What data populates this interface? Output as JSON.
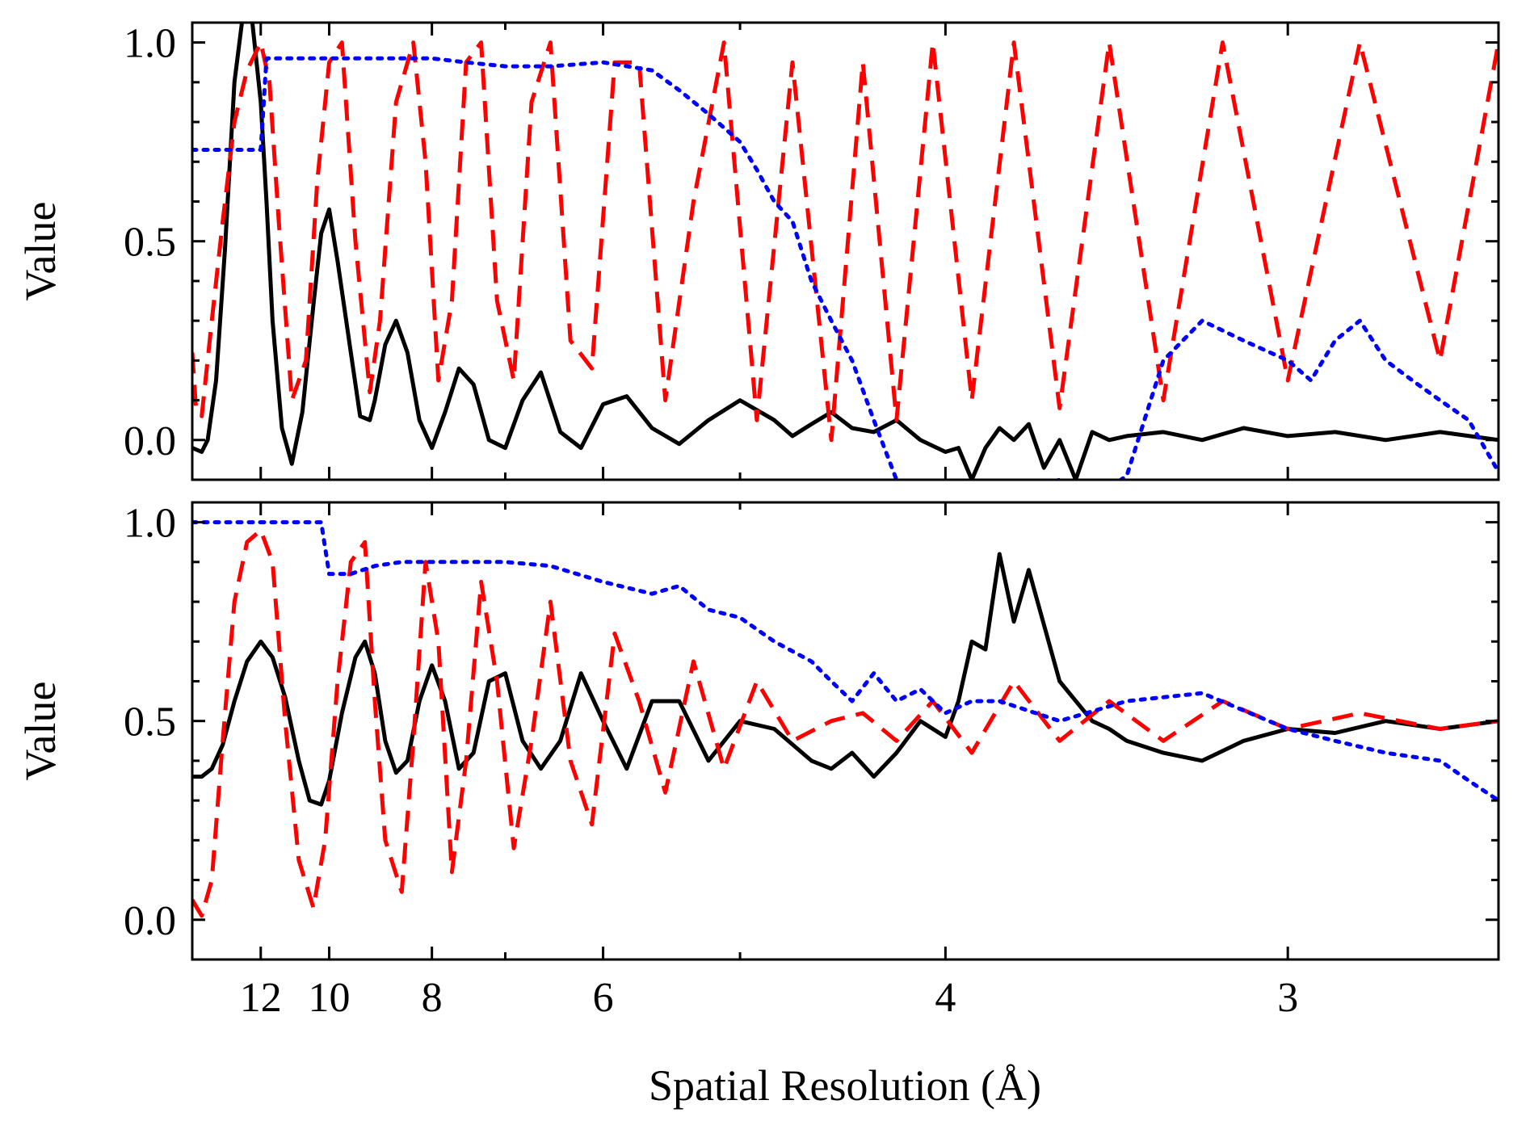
{
  "chart_data": [
    {
      "type": "line",
      "xlabel": "",
      "ylabel": "Value",
      "x_scale": "reciprocal",
      "xlim": [
        15.0,
        2.6
      ],
      "ylim": [
        -0.1,
        1.05
      ],
      "x_major_ticks": [
        12,
        10,
        8,
        6,
        4,
        3
      ],
      "x_tick_labels": [],
      "x_minor_ticks": [
        7,
        5
      ],
      "y_ticks": [
        0.0,
        0.5,
        1.0
      ],
      "y_tick_labels": [
        "0.0",
        "0.5",
        "1.0"
      ],
      "y_minor_ticks": [
        0.1,
        0.2,
        0.3,
        0.4,
        0.6,
        0.7,
        0.8,
        0.9
      ],
      "series": [
        {
          "style": "solid",
          "color": "#000000",
          "x": [
            15.0,
            14.5,
            14.2,
            13.8,
            13.4,
            13.0,
            12.6,
            12.3,
            12.0,
            11.8,
            11.6,
            11.3,
            11.0,
            10.7,
            10.4,
            10.2,
            10.0,
            9.8,
            9.5,
            9.3,
            9.1,
            9.0,
            8.8,
            8.6,
            8.4,
            8.2,
            8.0,
            7.8,
            7.6,
            7.4,
            7.2,
            7.0,
            6.8,
            6.6,
            6.4,
            6.2,
            6.0,
            5.8,
            5.6,
            5.4,
            5.2,
            5.0,
            4.8,
            4.7,
            4.6,
            4.5,
            4.4,
            4.3,
            4.2,
            4.1,
            4.0,
            3.95,
            3.9,
            3.85,
            3.8,
            3.75,
            3.7,
            3.65,
            3.6,
            3.55,
            3.5,
            3.45,
            3.4,
            3.3,
            3.2,
            3.1,
            3.0,
            2.9,
            2.8,
            2.7,
            2.6
          ],
          "y": [
            -0.02,
            -0.03,
            0.0,
            0.15,
            0.48,
            0.9,
            1.1,
            1.05,
            0.85,
            0.6,
            0.3,
            0.03,
            -0.06,
            0.07,
            0.34,
            0.52,
            0.58,
            0.45,
            0.22,
            0.06,
            0.05,
            0.1,
            0.24,
            0.3,
            0.22,
            0.05,
            -0.02,
            0.07,
            0.18,
            0.14,
            0.0,
            -0.02,
            0.1,
            0.17,
            0.02,
            -0.02,
            0.09,
            0.11,
            0.03,
            -0.01,
            0.05,
            0.1,
            0.05,
            0.01,
            0.04,
            0.07,
            0.03,
            0.02,
            0.05,
            0.0,
            -0.03,
            -0.02,
            -0.1,
            -0.02,
            0.03,
            0.0,
            0.04,
            -0.07,
            0.0,
            -0.1,
            0.02,
            0.0,
            0.01,
            0.02,
            0.0,
            0.03,
            0.01,
            0.02,
            0.0,
            0.02,
            0.0
          ]
        },
        {
          "style": "dashed",
          "color": "#ff0000",
          "x": [
            15.0,
            14.8,
            14.5,
            14.0,
            13.5,
            13.0,
            12.5,
            12.0,
            11.7,
            11.4,
            11.0,
            10.6,
            10.3,
            10.0,
            9.7,
            9.4,
            9.1,
            8.9,
            8.6,
            8.3,
            8.1,
            7.9,
            7.7,
            7.5,
            7.3,
            7.1,
            6.9,
            6.7,
            6.5,
            6.3,
            6.1,
            5.9,
            5.7,
            5.5,
            5.3,
            5.1,
            4.9,
            4.7,
            4.5,
            4.35,
            4.2,
            4.05,
            3.9,
            3.75,
            3.6,
            3.45,
            3.3,
            3.15,
            3.0,
            2.85,
            2.7,
            2.6
          ],
          "y": [
            0.22,
            0.08,
            0.06,
            0.3,
            0.55,
            0.8,
            0.93,
            1.0,
            0.9,
            0.55,
            0.1,
            0.2,
            0.65,
            0.95,
            1.0,
            0.5,
            0.12,
            0.3,
            0.85,
            1.0,
            0.7,
            0.15,
            0.35,
            0.95,
            1.0,
            0.35,
            0.15,
            0.85,
            1.0,
            0.25,
            0.18,
            0.95,
            0.95,
            0.1,
            0.6,
            1.0,
            0.05,
            0.95,
            0.0,
            0.95,
            0.05,
            1.0,
            0.1,
            1.0,
            0.08,
            1.0,
            0.1,
            1.0,
            0.15,
            1.0,
            0.2,
            1.0
          ]
        },
        {
          "style": "dotted",
          "color": "#0000ff",
          "x": [
            15.0,
            14.0,
            13.0,
            12.0,
            11.8,
            11.5,
            11.0,
            10.0,
            9.0,
            8.0,
            7.5,
            7.0,
            6.5,
            6.0,
            5.6,
            5.4,
            5.2,
            5.0,
            4.9,
            4.8,
            4.7,
            4.6,
            4.5,
            4.4,
            4.3,
            4.2,
            4.1,
            4.0,
            3.9,
            3.8,
            3.6,
            3.45,
            3.4,
            3.3,
            3.2,
            3.1,
            3.0,
            2.95,
            2.9,
            2.85,
            2.8,
            2.75,
            2.7,
            2.65,
            2.6
          ],
          "y": [
            0.73,
            0.73,
            0.73,
            0.73,
            0.96,
            0.96,
            0.96,
            0.96,
            0.96,
            0.96,
            0.95,
            0.94,
            0.94,
            0.95,
            0.93,
            0.88,
            0.82,
            0.75,
            0.68,
            0.6,
            0.55,
            0.4,
            0.3,
            0.2,
            0.05,
            -0.1,
            -0.12,
            -0.18,
            -0.15,
            -0.15,
            -0.1,
            -0.12,
            -0.09,
            0.2,
            0.3,
            0.25,
            0.2,
            0.15,
            0.25,
            0.3,
            0.2,
            0.15,
            0.1,
            0.05,
            -0.08
          ]
        }
      ]
    },
    {
      "type": "line",
      "xlabel": "Spatial Resolution (Å)",
      "ylabel": "Value",
      "x_scale": "reciprocal",
      "xlim": [
        15.0,
        2.6
      ],
      "ylim": [
        -0.1,
        1.05
      ],
      "x_major_ticks": [
        12,
        10,
        8,
        6,
        4,
        3
      ],
      "x_tick_labels": [
        "12",
        "10",
        "8",
        "6",
        "4",
        "3"
      ],
      "x_minor_ticks": [
        7,
        5
      ],
      "y_ticks": [
        0.0,
        0.5,
        1.0
      ],
      "y_tick_labels": [
        "0.0",
        "0.5",
        "1.0"
      ],
      "y_minor_ticks": [
        0.1,
        0.2,
        0.3,
        0.4,
        0.6,
        0.7,
        0.8,
        0.9
      ],
      "series": [
        {
          "style": "solid",
          "color": "#000000",
          "x": [
            15.0,
            14.5,
            14.0,
            13.5,
            13.0,
            12.5,
            12.0,
            11.6,
            11.2,
            10.8,
            10.5,
            10.2,
            10.0,
            9.7,
            9.4,
            9.2,
            9.0,
            8.8,
            8.6,
            8.4,
            8.2,
            8.0,
            7.8,
            7.6,
            7.4,
            7.2,
            7.0,
            6.8,
            6.6,
            6.4,
            6.2,
            6.0,
            5.8,
            5.6,
            5.4,
            5.2,
            5.0,
            4.8,
            4.6,
            4.5,
            4.4,
            4.3,
            4.2,
            4.1,
            4.0,
            3.95,
            3.9,
            3.85,
            3.8,
            3.75,
            3.7,
            3.6,
            3.5,
            3.45,
            3.4,
            3.3,
            3.2,
            3.1,
            3.0,
            2.9,
            2.8,
            2.7,
            2.6
          ],
          "y": [
            0.36,
            0.36,
            0.38,
            0.44,
            0.55,
            0.65,
            0.7,
            0.66,
            0.56,
            0.4,
            0.3,
            0.29,
            0.35,
            0.52,
            0.66,
            0.7,
            0.62,
            0.45,
            0.37,
            0.4,
            0.55,
            0.64,
            0.55,
            0.38,
            0.42,
            0.6,
            0.62,
            0.45,
            0.38,
            0.45,
            0.62,
            0.5,
            0.38,
            0.55,
            0.55,
            0.4,
            0.5,
            0.48,
            0.4,
            0.38,
            0.42,
            0.36,
            0.42,
            0.5,
            0.46,
            0.55,
            0.7,
            0.68,
            0.92,
            0.75,
            0.88,
            0.6,
            0.5,
            0.48,
            0.45,
            0.42,
            0.4,
            0.45,
            0.48,
            0.47,
            0.5,
            0.48,
            0.5
          ]
        },
        {
          "style": "dashed",
          "color": "#ff0000",
          "x": [
            15.0,
            14.5,
            14.0,
            13.5,
            13.0,
            12.5,
            12.0,
            11.6,
            11.2,
            10.8,
            10.4,
            10.1,
            9.8,
            9.5,
            9.2,
            9.0,
            8.8,
            8.5,
            8.3,
            8.1,
            7.9,
            7.7,
            7.5,
            7.3,
            7.1,
            6.9,
            6.7,
            6.5,
            6.3,
            6.1,
            5.9,
            5.7,
            5.5,
            5.3,
            5.1,
            4.9,
            4.7,
            4.5,
            4.35,
            4.2,
            4.05,
            3.9,
            3.75,
            3.6,
            3.45,
            3.3,
            3.15,
            3.0,
            2.85,
            2.7,
            2.6
          ],
          "y": [
            0.05,
            0.01,
            0.1,
            0.45,
            0.8,
            0.95,
            0.98,
            0.9,
            0.5,
            0.15,
            0.03,
            0.2,
            0.6,
            0.9,
            0.95,
            0.55,
            0.2,
            0.07,
            0.45,
            0.9,
            0.7,
            0.12,
            0.4,
            0.85,
            0.6,
            0.18,
            0.45,
            0.8,
            0.4,
            0.24,
            0.72,
            0.55,
            0.32,
            0.65,
            0.38,
            0.6,
            0.45,
            0.5,
            0.52,
            0.45,
            0.55,
            0.42,
            0.6,
            0.45,
            0.55,
            0.45,
            0.55,
            0.48,
            0.52,
            0.48,
            0.5
          ]
        },
        {
          "style": "dotted",
          "color": "#0000ff",
          "x": [
            15.0,
            14.0,
            13.0,
            12.0,
            11.0,
            10.2,
            10.0,
            9.5,
            9.0,
            8.5,
            8.0,
            7.5,
            7.0,
            6.5,
            6.0,
            5.6,
            5.4,
            5.2,
            5.0,
            4.8,
            4.6,
            4.5,
            4.4,
            4.3,
            4.2,
            4.1,
            4.0,
            3.9,
            3.8,
            3.6,
            3.4,
            3.2,
            3.0,
            2.9,
            2.8,
            2.7,
            2.65,
            2.6
          ],
          "y": [
            1.0,
            1.0,
            1.0,
            1.0,
            1.0,
            1.0,
            0.87,
            0.87,
            0.89,
            0.9,
            0.9,
            0.9,
            0.9,
            0.89,
            0.85,
            0.82,
            0.84,
            0.78,
            0.76,
            0.7,
            0.65,
            0.6,
            0.55,
            0.62,
            0.55,
            0.58,
            0.52,
            0.55,
            0.55,
            0.5,
            0.55,
            0.57,
            0.48,
            0.45,
            0.42,
            0.4,
            0.35,
            0.3
          ]
        }
      ]
    }
  ]
}
